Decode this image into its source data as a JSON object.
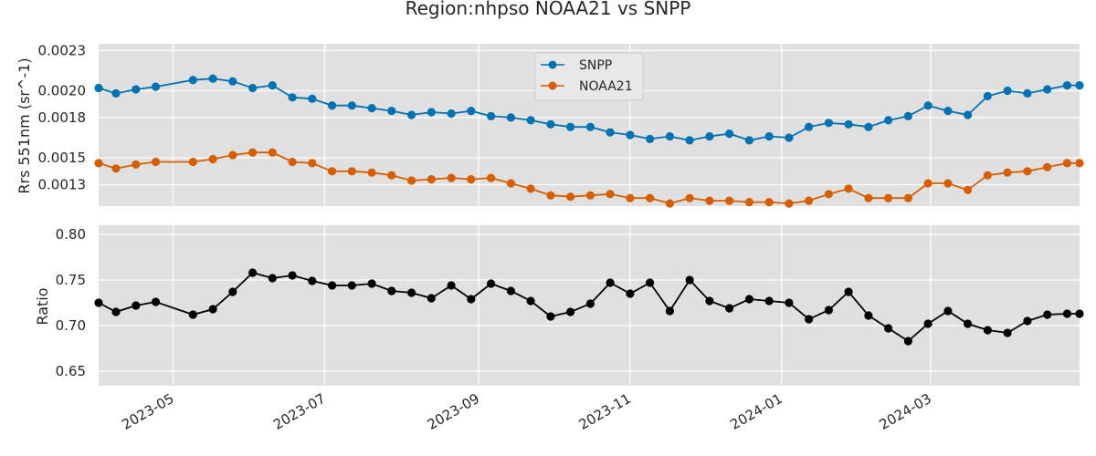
{
  "title": "Region:nhpso NOAA21 vs SNPP",
  "colors": {
    "panel_bg": "#e0e0e0",
    "grid": "#ffffff",
    "snpp": "#0072b2",
    "noaa21": "#d55e00",
    "ratio": "#000000"
  },
  "x_ticks": [
    "2023-05",
    "2023-07",
    "2023-09",
    "2023-11",
    "2024-01",
    "2024-03"
  ],
  "chart_data": [
    {
      "type": "line",
      "ylabel": "Rrs 551nm (sr^-1)",
      "xlim": [
        "2023-04-01",
        "2024-04-30"
      ],
      "ylim": [
        0.00114,
        0.00235
      ],
      "yticks": [
        "0.0013",
        "0.0015",
        "0.0018",
        "0.0020",
        "0.0023"
      ],
      "legend": "top-center",
      "grid": true,
      "x": [
        "2023-04-01",
        "2023-04-08",
        "2023-04-16",
        "2023-04-24",
        "2023-05-09",
        "2023-05-17",
        "2023-05-25",
        "2023-06-02",
        "2023-06-10",
        "2023-06-18",
        "2023-06-26",
        "2023-07-04",
        "2023-07-12",
        "2023-07-20",
        "2023-07-28",
        "2023-08-05",
        "2023-08-13",
        "2023-08-21",
        "2023-08-29",
        "2023-09-06",
        "2023-09-14",
        "2023-09-22",
        "2023-09-30",
        "2023-10-08",
        "2023-10-16",
        "2023-10-24",
        "2023-11-01",
        "2023-11-09",
        "2023-11-17",
        "2023-11-25",
        "2023-12-03",
        "2023-12-11",
        "2023-12-19",
        "2023-12-27",
        "2024-01-04",
        "2024-01-12",
        "2024-01-20",
        "2024-01-28",
        "2024-02-05",
        "2024-02-13",
        "2024-02-21",
        "2024-02-29",
        "2024-03-08",
        "2024-03-16",
        "2024-03-24",
        "2024-04-01",
        "2024-04-09",
        "2024-04-17",
        "2024-04-25",
        "2024-04-30"
      ],
      "series": [
        {
          "name": "SNPP",
          "values": [
            0.00202,
            0.00198,
            0.00201,
            0.00203,
            0.00208,
            0.00209,
            0.00207,
            0.00202,
            0.00204,
            0.00195,
            0.00194,
            0.00189,
            0.00189,
            0.00187,
            0.00185,
            0.00182,
            0.00184,
            0.00183,
            0.00185,
            0.00181,
            0.0018,
            0.00178,
            0.00175,
            0.00173,
            0.00173,
            0.00169,
            0.00167,
            0.00164,
            0.00166,
            0.00163,
            0.00166,
            0.00168,
            0.00163,
            0.00166,
            0.00165,
            0.00173,
            0.00176,
            0.00175,
            0.00173,
            0.00178,
            0.00181,
            0.00189,
            0.00185,
            0.00182,
            0.00196,
            0.002,
            0.00198,
            0.00201,
            0.00204,
            0.00204
          ]
        },
        {
          "name": "NOAA21",
          "values": [
            0.00146,
            0.00142,
            0.00145,
            0.00147,
            0.00147,
            0.00149,
            0.00152,
            0.00154,
            0.00154,
            0.00147,
            0.00146,
            0.0014,
            0.0014,
            0.00139,
            0.00137,
            0.00133,
            0.00134,
            0.00135,
            0.00134,
            0.00135,
            0.00131,
            0.00127,
            0.00122,
            0.00121,
            0.00122,
            0.00123,
            0.0012,
            0.0012,
            0.00116,
            0.0012,
            0.00118,
            0.00118,
            0.00117,
            0.00117,
            0.00116,
            0.00118,
            0.00123,
            0.00127,
            0.0012,
            0.0012,
            0.0012,
            0.00131,
            0.00131,
            0.00126,
            0.00137,
            0.00139,
            0.0014,
            0.00143,
            0.00146,
            0.00146
          ]
        }
      ]
    },
    {
      "type": "line",
      "ylabel": "Ratio",
      "xlim": [
        "2023-04-01",
        "2024-04-30"
      ],
      "ylim": [
        0.634,
        0.81
      ],
      "yticks": [
        "0.65",
        "0.70",
        "0.75",
        "0.80"
      ],
      "grid": true,
      "x": [
        "2023-04-01",
        "2023-04-08",
        "2023-04-16",
        "2023-04-24",
        "2023-05-09",
        "2023-05-17",
        "2023-05-25",
        "2023-06-02",
        "2023-06-10",
        "2023-06-18",
        "2023-06-26",
        "2023-07-04",
        "2023-07-12",
        "2023-07-20",
        "2023-07-28",
        "2023-08-05",
        "2023-08-13",
        "2023-08-21",
        "2023-08-29",
        "2023-09-06",
        "2023-09-14",
        "2023-09-22",
        "2023-09-30",
        "2023-10-08",
        "2023-10-16",
        "2023-10-24",
        "2023-11-01",
        "2023-11-09",
        "2023-11-17",
        "2023-11-25",
        "2023-12-03",
        "2023-12-11",
        "2023-12-19",
        "2023-12-27",
        "2024-01-04",
        "2024-01-12",
        "2024-01-20",
        "2024-01-28",
        "2024-02-05",
        "2024-02-13",
        "2024-02-21",
        "2024-02-29",
        "2024-03-08",
        "2024-03-16",
        "2024-03-24",
        "2024-04-01",
        "2024-04-09",
        "2024-04-17",
        "2024-04-25",
        "2024-04-30"
      ],
      "series": [
        {
          "values": [
            0.725,
            0.715,
            0.722,
            0.726,
            0.712,
            0.718,
            0.737,
            0.758,
            0.752,
            0.755,
            0.749,
            0.744,
            0.744,
            0.746,
            0.738,
            0.736,
            0.73,
            0.744,
            0.729,
            0.746,
            0.738,
            0.727,
            0.71,
            0.715,
            0.724,
            0.747,
            0.735,
            0.747,
            0.716,
            0.75,
            0.727,
            0.719,
            0.729,
            0.727,
            0.725,
            0.707,
            0.717,
            0.737,
            0.711,
            0.697,
            0.683,
            0.702,
            0.716,
            0.702,
            0.695,
            0.692,
            0.705,
            0.712,
            0.713,
            0.713
          ]
        }
      ]
    }
  ]
}
